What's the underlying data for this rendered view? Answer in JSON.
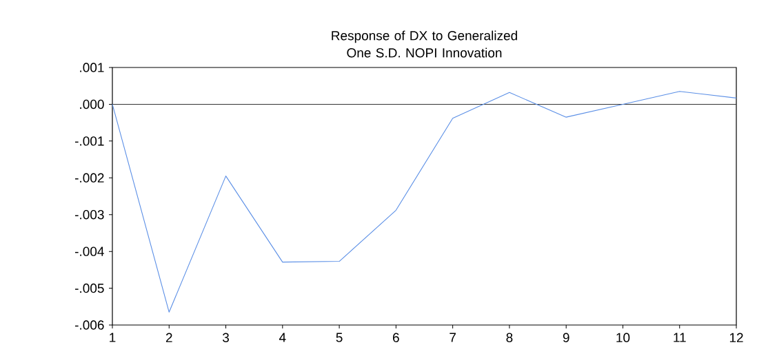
{
  "chart_data": {
    "type": "line",
    "title": "Response of DX to Generalized One S.D. NOPI Innovation",
    "x": [
      1,
      2,
      3,
      4,
      5,
      6,
      7,
      8,
      9,
      10,
      11,
      12
    ],
    "series": [
      {
        "color": "#5b8fe6",
        "values": [
          0.0,
          -0.00565,
          -0.00195,
          -0.00429,
          -0.00427,
          -0.00288,
          -0.00038,
          0.00032,
          -0.00035,
          0.0,
          0.00035,
          0.00017
        ]
      }
    ],
    "xlim": [
      1,
      12
    ],
    "xticks": [
      1,
      2,
      3,
      4,
      5,
      6,
      7,
      8,
      9,
      10,
      11,
      12
    ],
    "ylim": [
      -0.006,
      0.001
    ],
    "yticks": [
      {
        "value": 0.001,
        "label": ".001"
      },
      {
        "value": 0.0,
        "label": ".000"
      },
      {
        "value": -0.001,
        "label": "-.001"
      },
      {
        "value": -0.002,
        "label": "-.002"
      },
      {
        "value": -0.003,
        "label": "-.003"
      },
      {
        "value": -0.004,
        "label": "-.004"
      },
      {
        "value": -0.005,
        "label": "-.005"
      },
      {
        "value": -0.006,
        "label": "-.006"
      }
    ],
    "ref_lines": [
      {
        "axis": "y",
        "value": 0,
        "color": "#333333"
      }
    ],
    "grid": false,
    "marker": "none",
    "line_style": "solid"
  }
}
